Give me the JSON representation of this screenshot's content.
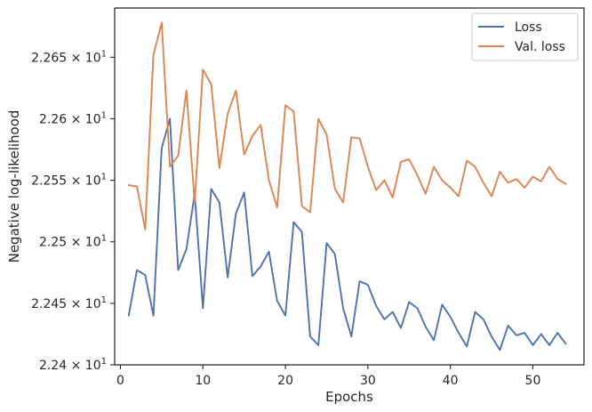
{
  "chart_data": {
    "type": "line",
    "xlabel": "Epochs",
    "ylabel": "Negative log-likelihood",
    "xlim": [
      -0.7,
      56.2
    ],
    "ylim": [
      22.4,
      22.69
    ],
    "y_scale": "log",
    "x_ticks": [
      0,
      10,
      20,
      30,
      40,
      50
    ],
    "x_tick_labels": [
      "0",
      "10",
      "20",
      "30",
      "40",
      "50"
    ],
    "y_ticks": [
      22.4,
      22.45,
      22.5,
      22.55,
      22.6,
      22.65
    ],
    "y_tick_labels": [
      {
        "mantissa": "2.24",
        "times": "×",
        "base": "10",
        "exp": "1"
      },
      {
        "mantissa": "2.245",
        "times": "×",
        "base": "10",
        "exp": "1"
      },
      {
        "mantissa": "2.25",
        "times": "×",
        "base": "10",
        "exp": "1"
      },
      {
        "mantissa": "2.255",
        "times": "×",
        "base": "10",
        "exp": "1"
      },
      {
        "mantissa": "2.26",
        "times": "×",
        "base": "10",
        "exp": "1"
      },
      {
        "mantissa": "2.265",
        "times": "×",
        "base": "10",
        "exp": "1"
      }
    ],
    "grid": false,
    "legend_position": "upper right",
    "x": [
      1,
      2,
      3,
      4,
      5,
      6,
      7,
      8,
      9,
      10,
      11,
      12,
      13,
      14,
      15,
      16,
      17,
      18,
      19,
      20,
      21,
      22,
      23,
      24,
      25,
      26,
      27,
      28,
      29,
      30,
      31,
      32,
      33,
      34,
      35,
      36,
      37,
      38,
      39,
      40,
      41,
      42,
      43,
      44,
      45,
      46,
      47,
      48,
      49,
      50,
      51,
      52,
      53,
      54
    ],
    "series": [
      {
        "name": "Loss",
        "color": "#4c72b0",
        "values": [
          22.44,
          22.477,
          22.473,
          22.44,
          22.576,
          22.6,
          22.477,
          22.494,
          22.539,
          22.446,
          22.543,
          22.532,
          22.471,
          22.523,
          22.54,
          22.472,
          22.48,
          22.492,
          22.452,
          22.44,
          22.516,
          22.508,
          22.423,
          22.416,
          22.499,
          22.49,
          22.446,
          22.423,
          22.468,
          22.465,
          22.448,
          22.437,
          22.443,
          22.43,
          22.451,
          22.446,
          22.431,
          22.42,
          22.449,
          22.439,
          22.426,
          22.415,
          22.443,
          22.437,
          22.423,
          22.412,
          22.432,
          22.424,
          22.426,
          22.416,
          22.425,
          22.416,
          22.426,
          22.417
        ]
      },
      {
        "name": "Val. loss",
        "color": "#dd8452",
        "values": [
          22.546,
          22.545,
          22.51,
          22.652,
          22.678,
          22.561,
          22.57,
          22.623,
          22.532,
          22.64,
          22.628,
          22.56,
          22.604,
          22.623,
          22.571,
          22.586,
          22.595,
          22.55,
          22.528,
          22.611,
          22.606,
          22.529,
          22.524,
          22.6,
          22.587,
          22.543,
          22.532,
          22.585,
          22.584,
          22.561,
          22.542,
          22.55,
          22.536,
          22.565,
          22.567,
          22.554,
          22.539,
          22.561,
          22.55,
          22.544,
          22.537,
          22.566,
          22.561,
          22.548,
          22.537,
          22.557,
          22.548,
          22.551,
          22.544,
          22.553,
          22.549,
          22.561,
          22.551,
          22.547
        ]
      }
    ]
  },
  "colors": {
    "axes_edge": "#262626",
    "text": "#262626",
    "legend_border": "#cccccc"
  }
}
